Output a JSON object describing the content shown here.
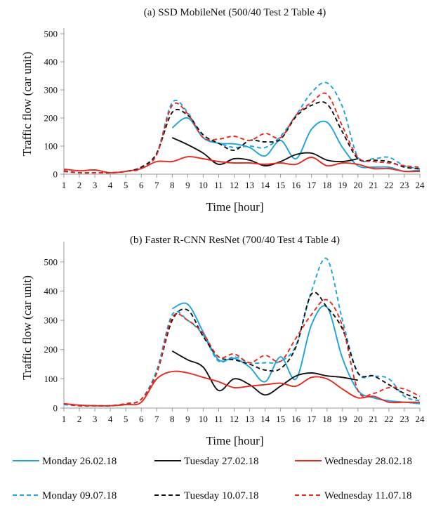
{
  "chart_data": [
    {
      "type": "line",
      "title": "(a) SSD MobileNet  (500/40 Test 2 Table 4)",
      "xlabel": "Time [hour]",
      "ylabel": "Traffic flow (car unit)",
      "xlim": [
        1,
        24
      ],
      "ylim": [
        0,
        500
      ],
      "x_ticks": [
        1,
        2,
        3,
        4,
        5,
        6,
        7,
        8,
        9,
        10,
        11,
        12,
        13,
        14,
        15,
        16,
        17,
        18,
        19,
        20,
        21,
        22,
        23,
        24
      ],
      "y_ticks": [
        0,
        100,
        200,
        300,
        400,
        500
      ],
      "series": [
        {
          "name": "Monday 26.02.18",
          "color": "#1ca3dc",
          "dash": "solid",
          "x": [
            8,
            9,
            10,
            11,
            12,
            13,
            14,
            15,
            16,
            17,
            18,
            19,
            20,
            21,
            22,
            23,
            24
          ],
          "y": [
            165,
            200,
            130,
            110,
            108,
            95,
            65,
            120,
            55,
            160,
            185,
            95,
            30,
            25,
            25,
            10,
            15
          ]
        },
        {
          "name": "Tuesday 27.02.18",
          "color": "#111111",
          "dash": "solid",
          "x": [
            8,
            9,
            10,
            11,
            12,
            13,
            14,
            15,
            16,
            17,
            18,
            19,
            20
          ],
          "y": [
            130,
            105,
            75,
            35,
            55,
            50,
            30,
            45,
            70,
            75,
            50,
            45,
            55
          ]
        },
        {
          "name": "Wednesday 28.02.18",
          "color": "#e8281c",
          "dash": "solid",
          "x": [
            1,
            2,
            3,
            4,
            5,
            6,
            7,
            8,
            9,
            10,
            11,
            12,
            13,
            14,
            15,
            16,
            17,
            18,
            19,
            20,
            21,
            22,
            23,
            24
          ],
          "y": [
            18,
            12,
            15,
            5,
            10,
            20,
            45,
            45,
            62,
            55,
            45,
            40,
            40,
            35,
            40,
            35,
            60,
            30,
            40,
            35,
            20,
            20,
            10,
            10
          ]
        },
        {
          "name": "Monday 09.07.18",
          "color": "#1ca3dc",
          "dash": "dashed",
          "x": [
            1,
            2,
            3,
            4,
            5,
            6,
            7,
            8,
            9,
            10,
            11,
            12,
            13,
            14,
            15,
            16,
            17,
            18,
            19,
            20,
            21,
            22,
            23,
            24
          ],
          "y": [
            10,
            5,
            5,
            5,
            10,
            25,
            75,
            255,
            220,
            130,
            110,
            95,
            100,
            95,
            135,
            210,
            290,
            325,
            240,
            60,
            55,
            60,
            30,
            20
          ]
        },
        {
          "name": "Tuesday 10.07.18",
          "color": "#111111",
          "dash": "dashed",
          "x": [
            1,
            2,
            3,
            4,
            5,
            6,
            7,
            8,
            9,
            10,
            11,
            12,
            13,
            14,
            15,
            16,
            17,
            18,
            19,
            20,
            21,
            22,
            23,
            24
          ],
          "y": [
            12,
            5,
            5,
            5,
            10,
            25,
            75,
            220,
            210,
            140,
            110,
            85,
            120,
            115,
            125,
            205,
            245,
            250,
            150,
            55,
            50,
            45,
            25,
            20
          ]
        },
        {
          "name": "Wednesday 11.07.18",
          "color": "#e8281c",
          "dash": "dashed",
          "x": [
            1,
            2,
            3,
            4,
            5,
            6,
            7,
            8,
            9,
            10,
            11,
            12,
            13,
            14,
            15,
            16,
            17,
            18,
            19,
            20,
            21,
            22,
            23,
            24
          ],
          "y": [
            10,
            5,
            5,
            5,
            10,
            20,
            70,
            245,
            215,
            130,
            125,
            135,
            120,
            145,
            130,
            210,
            255,
            285,
            170,
            60,
            45,
            40,
            30,
            25
          ]
        }
      ]
    },
    {
      "type": "line",
      "title": "(b) Faster R-CNN ResNet (700/40 Test 4 Table 4)",
      "xlabel": "Time [hour]",
      "ylabel": "Traffic flow (car unit)",
      "xlim": [
        1,
        24
      ],
      "ylim": [
        0,
        550
      ],
      "x_ticks": [
        1,
        2,
        3,
        4,
        5,
        6,
        7,
        8,
        9,
        10,
        11,
        12,
        13,
        14,
        15,
        16,
        17,
        18,
        19,
        20,
        21,
        22,
        23,
        24
      ],
      "y_ticks": [
        0,
        100,
        200,
        300,
        400,
        500
      ],
      "series": [
        {
          "name": "Monday 26.02.18",
          "color": "#1ca3dc",
          "dash": "solid",
          "x": [
            8,
            9,
            10,
            11,
            12,
            13,
            14,
            15,
            16,
            17,
            18,
            19,
            20,
            21,
            22,
            23,
            24
          ],
          "y": [
            340,
            355,
            260,
            165,
            170,
            140,
            90,
            175,
            100,
            285,
            345,
            170,
            60,
            35,
            25,
            20,
            15
          ]
        },
        {
          "name": "Tuesday 27.02.18",
          "color": "#111111",
          "dash": "solid",
          "x": [
            8,
            9,
            10,
            11,
            12,
            13,
            14,
            15,
            16,
            17,
            18,
            19,
            20
          ],
          "y": [
            195,
            165,
            140,
            60,
            100,
            80,
            45,
            75,
            110,
            120,
            110,
            105,
            95
          ]
        },
        {
          "name": "Wednesday 28.02.18",
          "color": "#e8281c",
          "dash": "solid",
          "x": [
            1,
            2,
            3,
            4,
            5,
            6,
            7,
            8,
            9,
            10,
            11,
            12,
            13,
            14,
            15,
            16,
            17,
            18,
            19,
            20,
            21,
            22,
            23,
            24
          ],
          "y": [
            15,
            10,
            8,
            8,
            12,
            20,
            100,
            125,
            120,
            105,
            90,
            70,
            75,
            80,
            85,
            75,
            105,
            100,
            65,
            35,
            40,
            20,
            20,
            20
          ]
        },
        {
          "name": "Monday 09.07.18",
          "color": "#1ca3dc",
          "dash": "dashed",
          "x": [
            1,
            2,
            3,
            4,
            5,
            6,
            7,
            8,
            9,
            10,
            11,
            12,
            13,
            14,
            15,
            16,
            17,
            18,
            19,
            20,
            21,
            22,
            23,
            24
          ],
          "y": [
            12,
            8,
            8,
            8,
            15,
            30,
            130,
            320,
            300,
            250,
            160,
            175,
            155,
            155,
            160,
            215,
            400,
            510,
            300,
            120,
            110,
            100,
            40,
            25
          ]
        },
        {
          "name": "Tuesday 10.07.18",
          "color": "#111111",
          "dash": "dashed",
          "x": [
            1,
            2,
            3,
            4,
            5,
            6,
            7,
            8,
            9,
            10,
            11,
            12,
            13,
            14,
            15,
            16,
            17,
            18,
            19,
            20,
            21,
            22,
            23,
            24
          ],
          "y": [
            15,
            8,
            8,
            8,
            15,
            30,
            120,
            300,
            335,
            245,
            175,
            165,
            150,
            130,
            135,
            210,
            390,
            345,
            270,
            120,
            110,
            80,
            50,
            30
          ]
        },
        {
          "name": "Wednesday 11.07.18",
          "color": "#e8281c",
          "dash": "dashed",
          "x": [
            1,
            2,
            3,
            4,
            5,
            6,
            7,
            8,
            9,
            10,
            11,
            12,
            13,
            14,
            15,
            16,
            17,
            18,
            19,
            20,
            21,
            22,
            23,
            24
          ],
          "y": [
            15,
            8,
            8,
            8,
            15,
            30,
            120,
            310,
            300,
            255,
            175,
            185,
            155,
            180,
            160,
            240,
            320,
            370,
            280,
            60,
            50,
            70,
            65,
            40
          ]
        }
      ]
    }
  ]
}
